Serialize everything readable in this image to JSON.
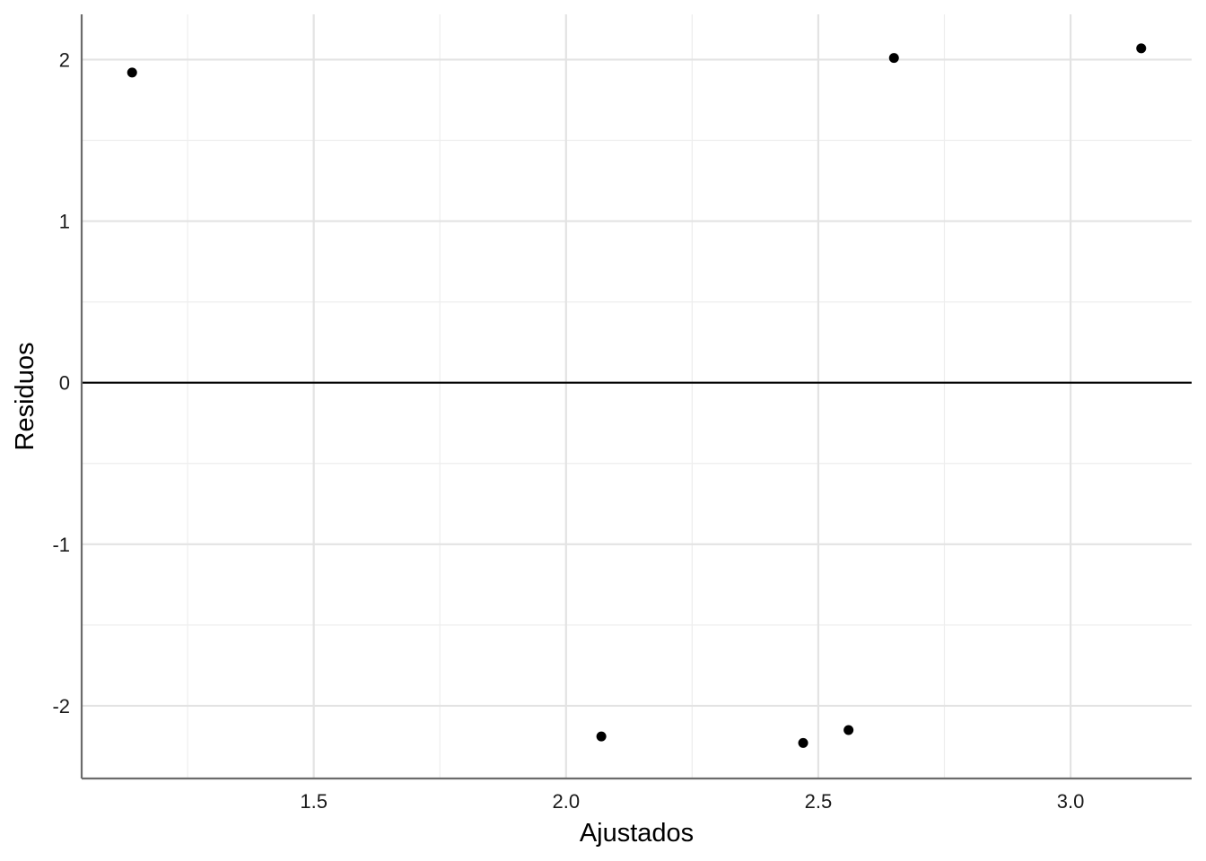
{
  "chart_data": {
    "type": "scatter",
    "title": "",
    "xlabel": "Ajustados",
    "ylabel": "Residuos",
    "xlim": [
      1.04,
      3.24
    ],
    "ylim": [
      -2.45,
      2.28
    ],
    "x_ticks": [
      1.5,
      2.0,
      2.5,
      3.0
    ],
    "x_tick_labels": [
      "1.5",
      "2.0",
      "2.5",
      "3.0"
    ],
    "y_ticks": [
      -2,
      -1,
      0,
      1,
      2
    ],
    "y_tick_labels": [
      "-2",
      "-1",
      "0",
      "1",
      "2"
    ],
    "x_minor_ticks": [
      1.25,
      1.75,
      2.25,
      2.75
    ],
    "y_minor_ticks": [
      -1.5,
      -0.5,
      0.5,
      1.5
    ],
    "reference_line_y": 0,
    "grid": true,
    "points": [
      {
        "x": 1.14,
        "y": 1.92
      },
      {
        "x": 2.07,
        "y": -2.19
      },
      {
        "x": 2.47,
        "y": -2.23
      },
      {
        "x": 2.56,
        "y": -2.15
      },
      {
        "x": 2.65,
        "y": 2.01
      },
      {
        "x": 3.14,
        "y": 2.07
      }
    ],
    "colors": {
      "point": "#000000",
      "reference_line": "#000000",
      "axis": "#6b6b6b",
      "grid_major": "#e3e3e3",
      "grid_minor": "#eeeeee"
    }
  }
}
